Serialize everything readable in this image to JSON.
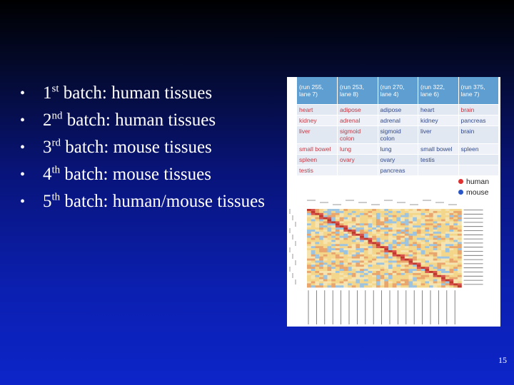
{
  "bullets": [
    {
      "num": "1",
      "sup": "st",
      "text": " batch: human tissues"
    },
    {
      "num": "2",
      "sup": "nd",
      "text": " batch: human tissues"
    },
    {
      "num": "3",
      "sup": "rd",
      "text": " batch: mouse tissues"
    },
    {
      "num": "4",
      "sup": "th",
      "text": " batch: mouse tissues"
    },
    {
      "num": "5",
      "sup": "th",
      "text": " batch: human/mouse tissues"
    }
  ],
  "figure": {
    "headers": [
      "(run 255, lane 7)",
      "(run 253, lane 8)",
      "(run 270, lane 4)",
      "(run 322, lane 6)",
      "(run 375, lane 7)"
    ],
    "rows": [
      [
        "heart",
        "adipose",
        "adipose",
        "heart",
        "brain"
      ],
      [
        "kidney",
        "adrenal",
        "adrenal",
        "kidney",
        "pancreas"
      ],
      [
        "liver",
        "sigmoid colon",
        "sigmoid colon",
        "liver",
        "brain"
      ],
      [
        "small bowel",
        "lung",
        "lung",
        "small bowel",
        "spleen"
      ],
      [
        "spleen",
        "ovary",
        "ovary",
        "testis",
        ""
      ],
      [
        "testis",
        "",
        "pancreas",
        "",
        ""
      ]
    ],
    "legend": [
      {
        "label": "human",
        "color": "#e03030"
      },
      {
        "label": "mouse",
        "color": "#2a55c8"
      }
    ]
  },
  "page_number": "15"
}
